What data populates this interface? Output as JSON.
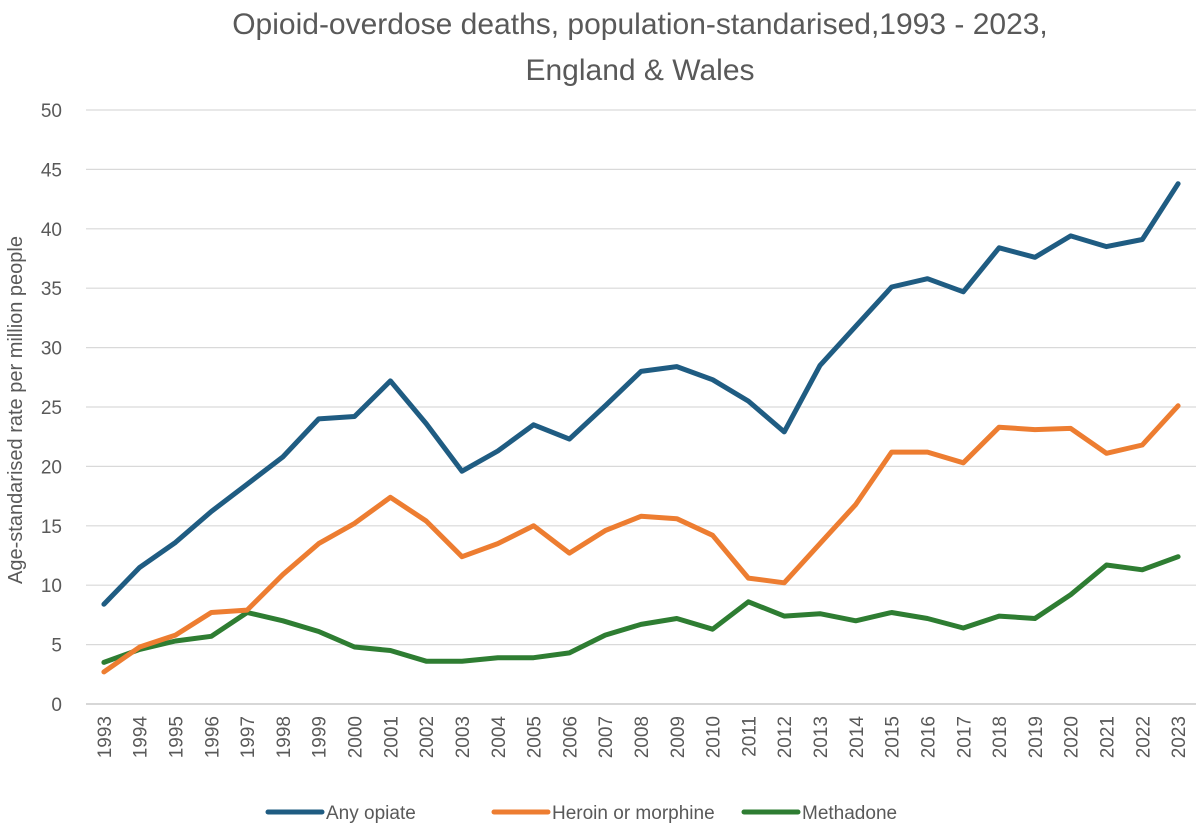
{
  "chart_data": {
    "type": "line",
    "title_lines": [
      "Opioid-overdose deaths, population-standarised,1993 - 2023,",
      "England & Wales"
    ],
    "xlabel": "",
    "ylabel": "Age-standarised rate per million people",
    "ylim": [
      0,
      50
    ],
    "yticks": [
      "0",
      "5",
      "10",
      "15",
      "20",
      "25",
      "30",
      "35",
      "40",
      "45",
      "50"
    ],
    "ytick_values": [
      0,
      5,
      10,
      15,
      20,
      25,
      30,
      35,
      40,
      45,
      50
    ],
    "grid": true,
    "legend_position": "bottom",
    "categories": [
      "1993",
      "1994",
      "1995",
      "1996",
      "1997",
      "1998",
      "1999",
      "2000",
      "2001",
      "2002",
      "2003",
      "2004",
      "2005",
      "2006",
      "2007",
      "2008",
      "2009",
      "2010",
      "2011",
      "2012",
      "2013",
      "2014",
      "2015",
      "2016",
      "2017",
      "2018",
      "2019",
      "2020",
      "2021",
      "2022",
      "2023"
    ],
    "series": [
      {
        "name": "Any opiate",
        "color": "#1f5c82",
        "values": [
          8.4,
          11.5,
          13.6,
          16.2,
          18.5,
          20.8,
          24.0,
          24.2,
          27.2,
          23.6,
          19.6,
          21.3,
          23.5,
          22.3,
          25.1,
          28.0,
          28.4,
          27.3,
          25.5,
          22.9,
          28.5,
          31.8,
          35.1,
          35.8,
          34.7,
          38.4,
          37.6,
          39.4,
          38.5,
          39.1,
          43.8
        ]
      },
      {
        "name": "Heroin or morphine",
        "color": "#ed7d31",
        "values": [
          2.7,
          4.8,
          5.8,
          7.7,
          7.9,
          10.9,
          13.5,
          15.2,
          17.4,
          15.4,
          12.4,
          13.5,
          15.0,
          12.7,
          14.6,
          15.8,
          15.6,
          14.2,
          10.6,
          10.2,
          13.5,
          16.8,
          21.2,
          21.2,
          20.3,
          23.3,
          23.1,
          23.2,
          21.1,
          21.8,
          25.1
        ]
      },
      {
        "name": "Methadone",
        "color": "#2e7d32",
        "values": [
          3.5,
          4.6,
          5.3,
          5.7,
          7.7,
          7.0,
          6.1,
          4.8,
          4.5,
          3.6,
          3.6,
          3.9,
          3.9,
          4.3,
          5.8,
          6.7,
          7.2,
          6.3,
          8.6,
          7.4,
          7.6,
          7.0,
          7.7,
          7.2,
          6.4,
          7.4,
          7.2,
          9.2,
          11.7,
          11.3,
          12.4
        ]
      }
    ]
  }
}
